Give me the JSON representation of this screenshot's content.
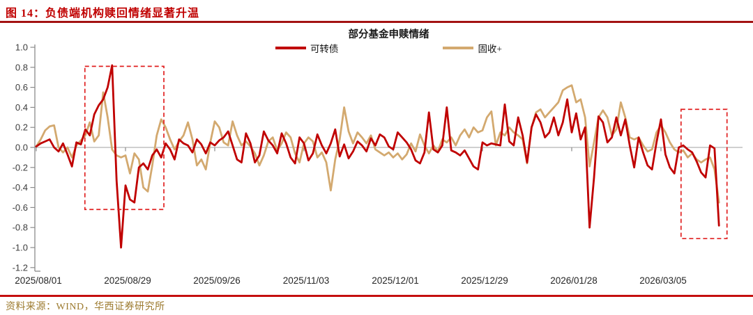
{
  "figure_title": "图 14：负债端机构赎回情绪显著升温",
  "source_note": "资料来源：WIND，华西证券研究所",
  "colors": {
    "title_red": "#C00000",
    "top_rule": "#A31212",
    "bottom_rule": "#C40E0E",
    "source_text": "#9C7A2E",
    "axis_gray": "#8a8a8a",
    "zero_line_gray": "#a0a0a0",
    "tick_label": "#3d3d3d",
    "x_label": "#262626",
    "annotation_box_red": "#E01F1F"
  },
  "chart_data": {
    "type": "line",
    "title": "部分基金申赎情绪",
    "legend_position": "top-center",
    "grid": "zero-line-only",
    "ylim": [
      -1.2,
      1.0
    ],
    "y_tick_step": 0.2,
    "y_ticks": [
      1.0,
      0.8,
      0.6,
      0.4,
      0.2,
      0.0,
      -0.2,
      -0.4,
      -0.6,
      -0.8,
      -1.0,
      -1.2
    ],
    "x_tick_labels": [
      "2025/08/01",
      "2025/08/29",
      "2025/09/26",
      "2025/11/03",
      "2025/12/01",
      "2025/12/29",
      "2026/01/28",
      "2026/03/05"
    ],
    "points_per_tick": 20,
    "series": [
      {
        "name": "可转债",
        "color": "#C00000",
        "values": [
          0.01,
          0.04,
          0.06,
          0.08,
          0.0,
          -0.04,
          0.04,
          -0.07,
          -0.19,
          0.05,
          0.03,
          0.18,
          0.12,
          0.33,
          0.42,
          0.48,
          0.6,
          0.82,
          -0.33,
          -1.0,
          -0.38,
          -0.52,
          -0.55,
          -0.2,
          -0.16,
          -0.22,
          -0.08,
          -0.02,
          -0.1,
          0.04,
          -0.02,
          -0.12,
          0.08,
          0.04,
          0.02,
          -0.05,
          0.08,
          0.03,
          -0.06,
          0.05,
          0.02,
          0.07,
          0.1,
          0.16,
          0.02,
          -0.12,
          -0.15,
          0.14,
          0.04,
          -0.15,
          -0.08,
          0.16,
          0.07,
          0.02,
          -0.06,
          0.14,
          0.04,
          -0.1,
          -0.16,
          0.1,
          0.04,
          -0.13,
          -0.06,
          0.13,
          0.02,
          -0.06,
          0.04,
          0.18,
          -0.09,
          0.03,
          -0.11,
          -0.04,
          0.06,
          0.02,
          -0.04,
          0.09,
          0.02,
          0.13,
          0.1,
          0.01,
          -0.02,
          0.15,
          0.1,
          0.05,
          -0.02,
          -0.13,
          -0.16,
          -0.05,
          0.35,
          -0.02,
          -0.05,
          0.02,
          0.4,
          -0.03,
          -0.05,
          -0.08,
          -0.03,
          -0.11,
          -0.19,
          -0.22,
          0.05,
          0.02,
          0.04,
          0.03,
          0.02,
          0.43,
          0.06,
          0.02,
          0.3,
          0.12,
          -0.15,
          0.2,
          0.33,
          0.25,
          0.1,
          0.15,
          0.3,
          0.12,
          0.25,
          0.48,
          0.15,
          0.34,
          0.08,
          0.2,
          -0.8,
          -0.3,
          0.31,
          0.25,
          0.05,
          0.1,
          0.3,
          0.12,
          0.28,
          0.02,
          -0.2,
          0.1,
          -0.05,
          -0.18,
          -0.22,
          0.05,
          0.28,
          -0.07,
          -0.2,
          -0.26,
          0.0,
          0.02,
          -0.02,
          -0.05,
          -0.14,
          -0.25,
          -0.3,
          0.02,
          -0.01,
          -0.78
        ]
      },
      {
        "name": "固收+",
        "color": "#D3A96F",
        "values": [
          0.01,
          0.08,
          0.17,
          0.21,
          0.22,
          0.0,
          -0.05,
          0.0,
          -0.1,
          0.02,
          0.07,
          0.12,
          0.25,
          0.06,
          0.12,
          0.55,
          0.3,
          -0.02,
          -0.08,
          -0.1,
          -0.08,
          -0.26,
          -0.06,
          -0.12,
          -0.4,
          -0.44,
          -0.18,
          0.12,
          0.28,
          0.2,
          0.08,
          -0.02,
          0.06,
          0.12,
          0.25,
          0.08,
          -0.18,
          -0.12,
          -0.22,
          0.05,
          0.26,
          0.2,
          0.05,
          0.02,
          0.26,
          0.12,
          0.02,
          0.06,
          0.01,
          -0.06,
          -0.18,
          -0.08,
          0.06,
          0.1,
          -0.03,
          0.04,
          0.15,
          0.1,
          -0.06,
          -0.15,
          0.04,
          0.1,
          0.06,
          -0.1,
          -0.05,
          -0.15,
          -0.43,
          -0.12,
          0.08,
          0.4,
          0.16,
          0.04,
          0.15,
          0.1,
          0.04,
          0.12,
          -0.02,
          -0.05,
          -0.08,
          -0.05,
          -0.1,
          -0.06,
          -0.12,
          -0.07,
          0.04,
          -0.04,
          0.13,
          0.02,
          -0.06,
          0.02,
          -0.04,
          0.08,
          0.05,
          0.1,
          0.02,
          0.12,
          0.18,
          0.1,
          0.2,
          0.15,
          0.17,
          0.3,
          0.36,
          0.02,
          0.15,
          0.12,
          0.2,
          0.15,
          0.12,
          0.08,
          -0.16,
          0.2,
          0.35,
          0.38,
          0.3,
          0.35,
          0.4,
          0.45,
          0.57,
          0.6,
          0.62,
          0.45,
          0.48,
          0.3,
          -0.19,
          0.05,
          0.3,
          0.37,
          0.3,
          0.12,
          0.18,
          0.45,
          0.3,
          0.1,
          0.08,
          0.1,
          0.02,
          -0.04,
          -0.02,
          0.15,
          0.22,
          0.15,
          0.05,
          -0.02,
          -0.05,
          -0.03,
          -0.1,
          -0.06,
          -0.12,
          -0.15,
          -0.12,
          -0.1,
          -0.22,
          -0.55
        ]
      }
    ],
    "annotations": {
      "boxes": [
        {
          "from_point": 10.9,
          "to_point": 28.6,
          "top_value": 0.81,
          "bottom_value": -0.62
        },
        {
          "from_point": 144.5,
          "to_point": 154.8,
          "top_value": 0.38,
          "bottom_value": -0.91
        }
      ]
    }
  }
}
